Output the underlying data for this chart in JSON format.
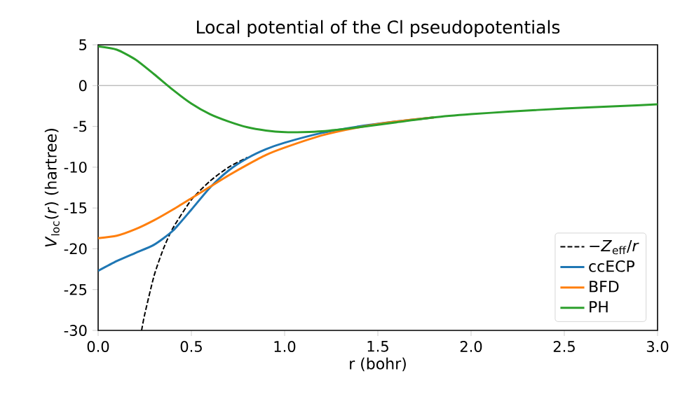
{
  "chart_data": {
    "type": "line",
    "title": "Local potential of the Cl pseudopotentials",
    "xlabel": "r (bohr)",
    "ylabel": "*V*$_{loc}$(*r*) (hartree)",
    "xlim": [
      0,
      3
    ],
    "ylim": [
      -30,
      5
    ],
    "xticks": [
      {
        "value": 0,
        "label": "0.0"
      },
      {
        "value": 0.5,
        "label": "0.5"
      },
      {
        "value": 1,
        "label": "1.0"
      },
      {
        "value": 1.5,
        "label": "1.5"
      },
      {
        "value": 2,
        "label": "2.0"
      },
      {
        "value": 2.5,
        "label": "2.5"
      },
      {
        "value": 3,
        "label": "3.0"
      }
    ],
    "yticks": [
      -30,
      -25,
      -20,
      -15,
      -10,
      -5,
      0,
      5
    ],
    "legend": "bottom right",
    "ref_lines": [
      {
        "axis": "y",
        "value": 0,
        "color": "#c0c0c0"
      }
    ],
    "series": [
      {
        "name": "−*Z*$_{eff}$/*r*",
        "color": "#000000",
        "line_style": "dashed",
        "x": [
          0.233,
          0.25,
          0.3,
          0.35,
          0.4,
          0.5,
          0.6,
          0.7,
          0.8
        ],
        "values": [
          -30,
          -28,
          -23.3,
          -20,
          -17.5,
          -14,
          -11.7,
          -10,
          -8.8
        ]
      },
      {
        "name": "ccECP",
        "color": "#1f77b4",
        "x": [
          0,
          0.1,
          0.2,
          0.3,
          0.4,
          0.5,
          0.6,
          0.7,
          0.8,
          0.9,
          1.0,
          1.2,
          1.4,
          1.6,
          1.8
        ],
        "values": [
          -22.7,
          -21.5,
          -20.5,
          -19.5,
          -17.8,
          -15.2,
          -12.5,
          -10.4,
          -8.9,
          -7.8,
          -7.0,
          -5.8,
          -5.0,
          -4.4,
          -3.9
        ]
      },
      {
        "name": "BFD",
        "color": "#ff7f0e",
        "x": [
          0,
          0.1,
          0.2,
          0.3,
          0.4,
          0.5,
          0.6,
          0.7,
          0.8,
          0.9,
          1.0,
          1.2,
          1.4,
          1.6,
          1.8
        ],
        "values": [
          -18.7,
          -18.4,
          -17.6,
          -16.5,
          -15.2,
          -13.8,
          -12.4,
          -11.0,
          -9.7,
          -8.5,
          -7.6,
          -6.1,
          -5.1,
          -4.4,
          -3.9
        ]
      },
      {
        "name": "PH",
        "color": "#2ca02c",
        "x": [
          0,
          0.1,
          0.2,
          0.3,
          0.4,
          0.5,
          0.6,
          0.7,
          0.8,
          0.9,
          1.0,
          1.1,
          1.2,
          1.4,
          1.6,
          1.8,
          2.0,
          2.2,
          2.5,
          2.8,
          3.0
        ],
        "values": [
          4.8,
          4.4,
          3.2,
          1.4,
          -0.5,
          -2.2,
          -3.5,
          -4.4,
          -5.1,
          -5.5,
          -5.7,
          -5.7,
          -5.6,
          -5.1,
          -4.5,
          -3.9,
          -3.5,
          -3.2,
          -2.8,
          -2.5,
          -2.3
        ]
      }
    ]
  }
}
